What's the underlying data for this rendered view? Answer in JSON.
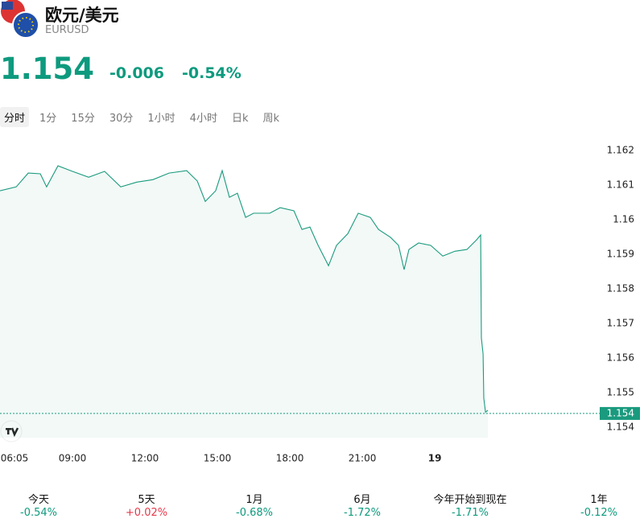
{
  "header": {
    "title": "欧元/美元",
    "symbol": "EURUSD",
    "price": "1.154",
    "change": "-0.006",
    "change_pct": "-0.54%",
    "color": "#0e9a7e"
  },
  "tabs": {
    "items": [
      "分时",
      "1分",
      "15分",
      "30分",
      "1小时",
      "4小时",
      "日k",
      "周k"
    ],
    "selected": 0
  },
  "chart_data": {
    "type": "line",
    "color": "#1a9a7e",
    "x": [
      6,
      6.67,
      7.17,
      7.67,
      7.93,
      8.4,
      9,
      9.67,
      10.33,
      11,
      11.67,
      12.33,
      13,
      13.73,
      14.17,
      14.5,
      14.93,
      15.2,
      15.5,
      15.83,
      16.17,
      16.5,
      17.17,
      17.6,
      18.17,
      18.5,
      18.83,
      19.17,
      19.6,
      19.93,
      20.4,
      20.83,
      21.33,
      21.67,
      22.17,
      22.5,
      22.73,
      22.93,
      23.33,
      23.83,
      24.33,
      24.83,
      25.33,
      25.73,
      25.9,
      25.93,
      26,
      26.03,
      26.1,
      26.2
    ],
    "values": [
      1.16084,
      1.16095,
      1.16135,
      1.16133,
      1.16095,
      1.16156,
      1.1614,
      1.16123,
      1.1614,
      1.16095,
      1.16109,
      1.16116,
      1.16135,
      1.16142,
      1.16112,
      1.16053,
      1.16084,
      1.16142,
      1.16065,
      1.16077,
      1.16007,
      1.16019,
      1.16019,
      1.16035,
      1.16026,
      1.15972,
      1.15979,
      1.15926,
      1.15867,
      1.15926,
      1.1596,
      1.16019,
      1.16007,
      1.15972,
      1.15949,
      1.15926,
      1.15856,
      1.15914,
      1.15933,
      1.15926,
      1.15895,
      1.15909,
      1.15914,
      1.15942,
      1.15956,
      1.15658,
      1.15612,
      1.15484,
      1.15444,
      1.15449
    ],
    "xlim": [
      6,
      30.83
    ],
    "ylim": [
      1.1537,
      1.1624
    ],
    "xticks": [
      {
        "value": 6.083,
        "label": "06:05"
      },
      {
        "value": 9,
        "label": "09:00"
      },
      {
        "value": 12,
        "label": "12:00"
      },
      {
        "value": 15,
        "label": "15:00"
      },
      {
        "value": 18,
        "label": "18:00"
      },
      {
        "value": 21,
        "label": "21:00"
      },
      {
        "value": 24,
        "label": "19"
      }
    ],
    "yticks": [
      1.162,
      1.161,
      1.16,
      1.159,
      1.158,
      1.157,
      1.156,
      1.155,
      1.154
    ],
    "current_price": {
      "value": 1.1544,
      "label": "1.154"
    }
  },
  "periods": [
    {
      "label": "今天",
      "change": "-0.54%",
      "color": "#0e9a7e"
    },
    {
      "label": "5天",
      "change": "+0.02%",
      "color": "#e5394b"
    },
    {
      "label": "1月",
      "change": "-0.68%",
      "color": "#0e9a7e"
    },
    {
      "label": "6月",
      "change": "-1.72%",
      "color": "#0e9a7e"
    },
    {
      "label": "今年开始到现在",
      "change": "-1.71%",
      "color": "#0e9a7e"
    },
    {
      "label": "1年",
      "change": "-0.12%",
      "color": "#0e9a7e"
    }
  ]
}
